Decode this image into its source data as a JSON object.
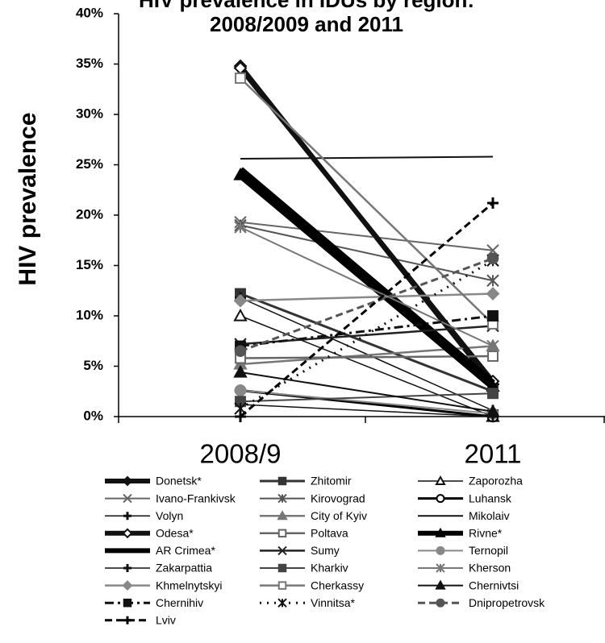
{
  "chart_data": {
    "type": "line",
    "title": [
      "HIV prevalence in IDUs by region:",
      "2008/2009 and 2011"
    ],
    "y_label": "HIV prevalence",
    "categories": [
      "2008/9",
      "2011"
    ],
    "ylim": [
      0,
      40
    ],
    "yticks": [
      {
        "value": 0,
        "label": "0%"
      },
      {
        "value": 5,
        "label": "5%"
      },
      {
        "value": 10,
        "label": "10%"
      },
      {
        "value": 15,
        "label": "15%"
      },
      {
        "value": 20,
        "label": "20%"
      },
      {
        "value": 25,
        "label": "25%"
      },
      {
        "value": 30,
        "label": "30%"
      },
      {
        "value": 35,
        "label": "35%"
      },
      {
        "value": 40,
        "label": "40%"
      }
    ],
    "series": [
      {
        "name": "Donetsk*",
        "color": "#111111",
        "width": 6,
        "marker": "diamond",
        "values": [
          34.8,
          3.2
        ]
      },
      {
        "name": "Zhitomir",
        "color": "#333333",
        "width": 3,
        "marker": "square",
        "values": [
          12.2,
          2.5
        ]
      },
      {
        "name": "Zaporozha",
        "color": "#111111",
        "width": 1.5,
        "marker": "triangle",
        "open": true,
        "values": [
          10,
          0
        ]
      },
      {
        "name": "Ivano-Frankivsk",
        "color": "#666666",
        "width": 2,
        "marker": "x",
        "values": [
          19.3,
          16.5
        ]
      },
      {
        "name": "Kirovograd",
        "color": "#555555",
        "width": 2,
        "marker": "asterisk",
        "values": [
          19,
          13.5
        ]
      },
      {
        "name": "Luhansk",
        "color": "#000000",
        "width": 3,
        "marker": "circle",
        "open": true,
        "values": [
          2.6,
          0
        ]
      },
      {
        "name": "Volyn",
        "color": "#111111",
        "width": 1.5,
        "marker": "plus",
        "values": [
          11.8,
          0.6
        ]
      },
      {
        "name": "City of Kyiv",
        "color": "#777777",
        "width": 2.5,
        "marker": "triangle",
        "values": [
          5.2,
          7
        ]
      },
      {
        "name": "Mikolaiv",
        "color": "#111111",
        "width": 2,
        "marker": "none",
        "values": [
          25.6,
          25.8
        ]
      },
      {
        "name": "Odesa*",
        "color": "#111111",
        "width": 6,
        "marker": "diamond",
        "open": true,
        "values": [
          34.6,
          3.5
        ]
      },
      {
        "name": "Poltava",
        "color": "#666666",
        "width": 2.5,
        "marker": "square",
        "open": true,
        "values": [
          5.8,
          6
        ]
      },
      {
        "name": "Rivne*",
        "color": "#000000",
        "width": 9,
        "marker": "triangle",
        "values": [
          24,
          3
        ]
      },
      {
        "name": "AR Crimea*",
        "color": "#000000",
        "width": 9,
        "marker": "none",
        "values": [
          24.5,
          3.3
        ]
      },
      {
        "name": "Sumy",
        "color": "#222222",
        "width": 2.5,
        "marker": "x",
        "values": [
          7.2,
          9
        ]
      },
      {
        "name": "Ternopil",
        "color": "#888888",
        "width": 2,
        "marker": "circle",
        "values": [
          2.6,
          0.3
        ]
      },
      {
        "name": "Zakarpattia",
        "color": "#111111",
        "width": 1.5,
        "marker": "plus",
        "values": [
          1.2,
          0
        ]
      },
      {
        "name": "Kharkiv",
        "color": "#444444",
        "width": 2,
        "marker": "square",
        "values": [
          1.5,
          2.3
        ]
      },
      {
        "name": "Kherson",
        "color": "#777777",
        "width": 2,
        "marker": "asterisk",
        "values": [
          18.8,
          7
        ]
      },
      {
        "name": "Khmelnytskyi",
        "color": "#888888",
        "width": 2.5,
        "marker": "diamond",
        "values": [
          11.5,
          12.2
        ]
      },
      {
        "name": "Cherkassy",
        "color": "#777777",
        "width": 2.5,
        "marker": "square",
        "open": true,
        "values": [
          33.6,
          9.2
        ]
      },
      {
        "name": "Chernivtsi",
        "color": "#111111",
        "width": 2,
        "marker": "triangle",
        "values": [
          4.4,
          0.5
        ]
      },
      {
        "name": "Chernihiv",
        "color": "#111111",
        "width": 3,
        "marker": "square",
        "dash": "dashdot",
        "values": [
          7,
          10
        ]
      },
      {
        "name": "Vinnitsa*",
        "color": "#111111",
        "width": 3,
        "marker": "asterisk",
        "dash": "dotted",
        "values": [
          0.8,
          15.5
        ]
      },
      {
        "name": "Dnipropetrovsk",
        "color": "#555555",
        "width": 3,
        "marker": "circle",
        "dash": "dashed",
        "values": [
          6.5,
          15.7
        ]
      },
      {
        "name": "Lviv",
        "color": "#000000",
        "width": 3,
        "marker": "plus",
        "dash": "dashed",
        "values": [
          0,
          21.2
        ]
      }
    ]
  }
}
